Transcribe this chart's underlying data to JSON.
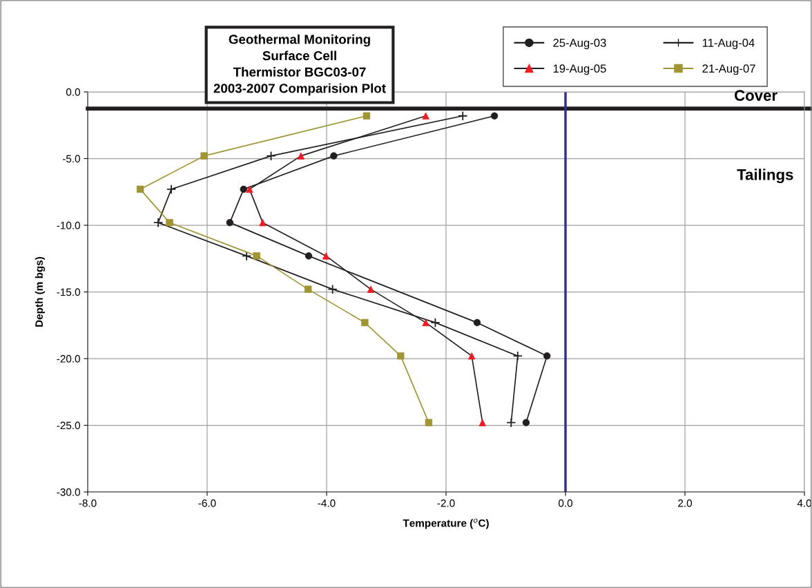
{
  "chart_data": {
    "type": "line",
    "title": "Geothermal Monitoring\nSurface Cell\nThermistor BGC03-07\n2003-2007 Comparision Plot",
    "xlabel": "Temperature ($^{o}$C)",
    "ylabel": "Depth (m bgs)",
    "xlim": [
      -8,
      4
    ],
    "ylim": [
      -30,
      0
    ],
    "xticks": [
      {
        "value": -8,
        "label": "-8.0"
      },
      {
        "value": -6,
        "label": "-6.0"
      },
      {
        "value": -4,
        "label": "-4.0"
      },
      {
        "value": -2,
        "label": "-2.0"
      },
      {
        "value": 0,
        "label": "0.0"
      },
      {
        "value": 2,
        "label": "2.0"
      },
      {
        "value": 4,
        "label": "4.0"
      }
    ],
    "yticks": [
      {
        "value": 0,
        "label": "0.0"
      },
      {
        "value": -5,
        "label": "-5.0"
      },
      {
        "value": -10,
        "label": "-10.0"
      },
      {
        "value": -15,
        "label": "-15.0"
      },
      {
        "value": -20,
        "label": "-20.0"
      },
      {
        "value": -25,
        "label": "-25.0"
      },
      {
        "value": -30,
        "label": "-30.0"
      }
    ],
    "grid": true,
    "legend": "top right",
    "line_style": "solid",
    "series": [
      {
        "name": "25-Aug-03",
        "color": "#231f20",
        "marker": "circle",
        "x": [
          -1.19,
          -3.88,
          -5.39,
          -5.62,
          -4.3,
          -1.48,
          -0.31,
          -0.66
        ],
        "values": [
          -1.8,
          -4.8,
          -7.3,
          -9.8,
          -12.3,
          -17.3,
          -19.8,
          -24.8
        ]
      },
      {
        "name": "11-Aug-04",
        "color": "#231f20",
        "marker": "cross",
        "x": [
          -1.72,
          -4.93,
          -6.6,
          -6.82,
          -5.34,
          -3.9,
          -2.18,
          -0.8,
          -0.91
        ],
        "values": [
          -1.8,
          -4.8,
          -7.3,
          -9.8,
          -12.3,
          -14.8,
          -17.3,
          -19.8,
          -24.8
        ]
      },
      {
        "name": "19-Aug-05",
        "color": "#231f20",
        "colors": [
          "#ee1c25",
          "#ee1c25",
          "#ee1c25",
          "#ee1c25",
          "#ee1c25",
          "#ee1c25",
          "#ee1c25",
          "#ee1c25",
          "#ee1c25"
        ],
        "marker": "triangle",
        "x": [
          -2.34,
          -4.43,
          -5.29,
          -5.07,
          -4.01,
          -3.26,
          -2.34,
          -1.57,
          -1.39
        ],
        "values": [
          -1.8,
          -4.8,
          -7.3,
          -9.8,
          -12.3,
          -14.8,
          -17.3,
          -19.8,
          -24.8
        ]
      },
      {
        "name": "21-Aug-07",
        "color": "#a09535",
        "marker": "square",
        "x": [
          -3.33,
          -6.05,
          -7.12,
          -6.63,
          -5.17,
          -4.31,
          -3.36,
          -2.76,
          -2.29
        ],
        "values": [
          -1.8,
          -4.8,
          -7.3,
          -9.8,
          -12.3,
          -14.8,
          -17.3,
          -19.8,
          -24.8
        ]
      }
    ],
    "ref_lines": [
      {
        "axis": "y",
        "value": -1.25,
        "label": "Cover",
        "color": "#231f20"
      },
      {
        "axis": "x",
        "value": 0,
        "color": "#2e3192"
      }
    ],
    "annotations": [
      "Tailings"
    ]
  }
}
